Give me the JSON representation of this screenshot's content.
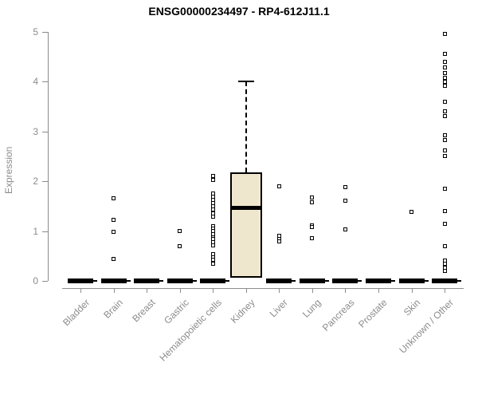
{
  "title": "ENSG00000234497 - RP4-612J11.1",
  "colors": {
    "box_fill": "#efe7cd",
    "box_border": "#000000",
    "median": "#000000",
    "axis": "#8c8c8c",
    "tick_label": "#8c8c8c",
    "title_text": "#000000",
    "point_border": "#000000",
    "point_fill": "#ffffff",
    "background": "#ffffff"
  },
  "chart_data": {
    "type": "boxplot",
    "title": "ENSG00000234497 - RP4-612J11.1",
    "xlabel": "",
    "ylabel": "Expression",
    "ylim": [
      0,
      5
    ],
    "y_ticks": [
      0,
      1,
      2,
      3,
      4,
      5
    ],
    "grid": false,
    "legend": "none",
    "categories": [
      "Bladder",
      "Brain",
      "Breast",
      "Gastric",
      "Hematopoietic cells",
      "Kidney",
      "Liver",
      "Lung",
      "Pancreas",
      "Prostate",
      "Skin",
      "Unknown / Other"
    ],
    "boxes": [
      {
        "category": "Bladder",
        "q1": 0,
        "median": 0,
        "q3": 0,
        "whisker_low": 0,
        "whisker_high": 0,
        "outliers": []
      },
      {
        "category": "Brain",
        "q1": 0,
        "median": 0,
        "q3": 0,
        "whisker_low": 0,
        "whisker_high": 0,
        "outliers": [
          1.65,
          1.22,
          0.98,
          0.44
        ]
      },
      {
        "category": "Breast",
        "q1": 0,
        "median": 0,
        "q3": 0,
        "whisker_low": 0,
        "whisker_high": 0,
        "outliers": []
      },
      {
        "category": "Gastric",
        "q1": 0,
        "median": 0,
        "q3": 0,
        "whisker_low": 0,
        "whisker_high": 0,
        "outliers": [
          1.0,
          0.7
        ]
      },
      {
        "category": "Hematopoietic cells",
        "q1": 0,
        "median": 0,
        "q3": 0,
        "whisker_low": 0,
        "whisker_high": 0,
        "outliers": [
          2.1,
          2.03,
          1.76,
          1.69,
          1.62,
          1.56,
          1.5,
          1.43,
          1.36,
          1.29,
          1.1,
          1.05,
          1.0,
          0.94,
          0.88,
          0.84,
          0.78,
          0.72,
          0.54,
          0.48,
          0.42,
          0.35
        ]
      },
      {
        "category": "Kidney",
        "q1": 0.07,
        "median": 1.47,
        "q3": 2.17,
        "whisker_low": 0.07,
        "whisker_high": 4.0,
        "outliers": []
      },
      {
        "category": "Liver",
        "q1": 0,
        "median": 0,
        "q3": 0,
        "whisker_low": 0,
        "whisker_high": 0,
        "outliers": [
          1.9,
          0.9,
          0.84,
          0.79
        ]
      },
      {
        "category": "Lung",
        "q1": 0,
        "median": 0,
        "q3": 0,
        "whisker_low": 0,
        "whisker_high": 0,
        "outliers": [
          1.68,
          1.58,
          1.12,
          1.08,
          0.85
        ]
      },
      {
        "category": "Pancreas",
        "q1": 0,
        "median": 0,
        "q3": 0,
        "whisker_low": 0,
        "whisker_high": 0,
        "outliers": [
          1.88,
          1.61,
          1.03
        ]
      },
      {
        "category": "Prostate",
        "q1": 0,
        "median": 0,
        "q3": 0,
        "whisker_low": 0,
        "whisker_high": 0,
        "outliers": []
      },
      {
        "category": "Skin",
        "q1": 0,
        "median": 0,
        "q3": 0,
        "whisker_low": 0,
        "whisker_high": 0,
        "outliers": [
          1.38
        ]
      },
      {
        "category": "Unknown / Other",
        "q1": 0,
        "median": 0,
        "q3": 0,
        "whisker_low": 0,
        "whisker_high": 0,
        "outliers": [
          4.95,
          4.56,
          4.4,
          4.28,
          4.17,
          4.08,
          4.0,
          3.92,
          3.6,
          3.4,
          3.3,
          2.92,
          2.82,
          2.62,
          2.5,
          1.85,
          1.4,
          1.15,
          0.7,
          0.41,
          0.34,
          0.27,
          0.2
        ]
      }
    ]
  }
}
